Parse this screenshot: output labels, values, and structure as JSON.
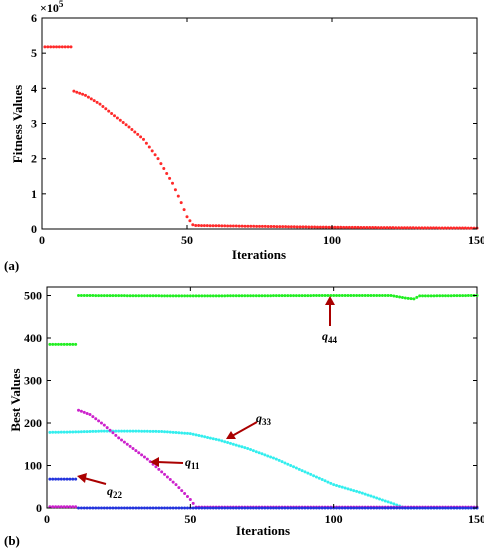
{
  "panels": [
    {
      "label": "(a)",
      "xlabel": "Iterations",
      "ylabel": "Fitness Values",
      "exponent_text": "×10",
      "exponent_power": "5",
      "xticks": [
        "0",
        "50",
        "100",
        "150"
      ],
      "yticks": [
        "0",
        "1",
        "2",
        "3",
        "4",
        "5",
        "6"
      ]
    },
    {
      "label": "(b)",
      "xlabel": "Iterations",
      "ylabel": "Best Values",
      "xticks": [
        "0",
        "50",
        "100",
        "150"
      ],
      "yticks": [
        "0",
        "100",
        "200",
        "300",
        "400",
        "500"
      ],
      "annotations": [
        {
          "base": "q",
          "sub": "44"
        },
        {
          "base": "q",
          "sub": "33"
        },
        {
          "base": "q",
          "sub": "11"
        },
        {
          "base": "q",
          "sub": "22"
        }
      ]
    }
  ],
  "colors": {
    "fitness": "#ff2a2a",
    "q44": "#22ee22",
    "q33": "#33eeee",
    "q11": "#cc22cc",
    "q22": "#2233dd",
    "q_red": "#ff2a2a",
    "arrow": "#aa0000"
  },
  "chart_data": [
    {
      "type": "scatter",
      "panel": "(a)",
      "xlabel": "Iterations",
      "ylabel": "Fitness Values",
      "xlim": [
        0,
        150
      ],
      "ylim": [
        0,
        600000
      ],
      "y_multiplier": "x10^5",
      "grid": false,
      "series": [
        {
          "color": "#ff2a2a",
          "segments": [
            {
              "x": [
                1,
                10
              ],
              "y": [
                518000,
                518000
              ],
              "note": "constant 1-10"
            },
            {
              "x": [
                11,
                15,
                20,
                25,
                30,
                35,
                40,
                45,
                48,
                50,
                52
              ],
              "y": [
                392000,
                380000,
                355000,
                322000,
                290000,
                255000,
                200000,
                130000,
                75000,
                35000,
                12000
              ]
            },
            {
              "x": [
                53,
                70,
                100,
                125,
                150
              ],
              "y": [
                10000,
                8000,
                5000,
                3500,
                2500
              ]
            }
          ]
        }
      ]
    },
    {
      "type": "scatter",
      "panel": "(b)",
      "xlabel": "Iterations",
      "ylabel": "Best Values",
      "xlim": [
        0,
        150
      ],
      "ylim": [
        0,
        520
      ],
      "grid": false,
      "series": [
        {
          "name": "q44",
          "color": "#22ee22",
          "segments": [
            {
              "x": [
                1,
                10
              ],
              "y": [
                385,
                385
              ]
            },
            {
              "x": [
                11,
                50,
                100,
                120,
                125,
                128,
                130,
                150
              ],
              "y": [
                500,
                499,
                500,
                500,
                494,
                492,
                499,
                500
              ]
            }
          ]
        },
        {
          "name": "q33",
          "color": "#33eeee",
          "segments": [
            {
              "x": [
                1,
                10,
                20,
                30,
                40,
                50,
                60,
                70,
                80,
                90,
                100,
                110,
                120,
                125,
                150
              ],
              "y": [
                178,
                179,
                181,
                181,
                180,
                175,
                160,
                140,
                115,
                85,
                55,
                35,
                12,
                0,
                0
              ]
            }
          ]
        },
        {
          "name": "q11",
          "color": "#cc22cc",
          "segments": [
            {
              "x": [
                1,
                10
              ],
              "y": [
                3,
                3
              ]
            },
            {
              "x": [
                11,
                15,
                20,
                25,
                30,
                35,
                40,
                45,
                50,
                52,
                150
              ],
              "y": [
                230,
                220,
                195,
                165,
                140,
                115,
                85,
                55,
                20,
                2,
                2
              ]
            }
          ]
        },
        {
          "name": "q22",
          "color": "#2233dd",
          "segments": [
            {
              "x": [
                1,
                10
              ],
              "y": [
                68,
                68
              ]
            },
            {
              "x": [
                11,
                150
              ],
              "y": [
                0,
                0
              ]
            }
          ]
        }
      ]
    }
  ]
}
